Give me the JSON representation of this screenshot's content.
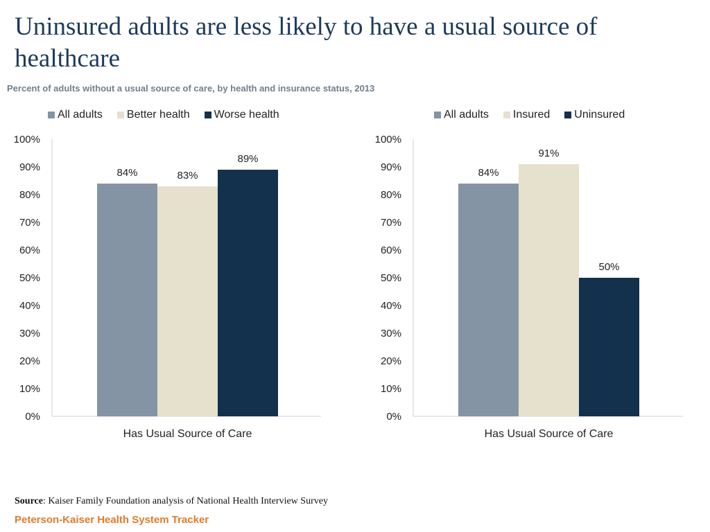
{
  "title": "Uninsured adults are less likely to have a usual source of healthcare",
  "subtitle": "Percent of adults without a usual source of care, by health and insurance status, 2013",
  "source_label": "Source",
  "source_text": ": Kaiser Family Foundation analysis of National Health Interview Survey",
  "footer": "Peterson-Kaiser Health System Tracker",
  "chart_data": [
    {
      "type": "bar",
      "categories": [
        "Has Usual Source of Care"
      ],
      "series": [
        {
          "name": "All adults",
          "values": [
            84
          ],
          "labels": [
            "84%"
          ],
          "color": "#8494a5"
        },
        {
          "name": "Better health",
          "values": [
            83
          ],
          "labels": [
            "83%"
          ],
          "color": "#e6e1cd"
        },
        {
          "name": "Worse health",
          "values": [
            89
          ],
          "labels": [
            "89%"
          ],
          "color": "#13304d"
        }
      ],
      "yticks": [
        "0%",
        "10%",
        "20%",
        "30%",
        "40%",
        "50%",
        "60%",
        "70%",
        "80%",
        "90%",
        "100%"
      ],
      "ylim": [
        0,
        100
      ],
      "legend": "top"
    },
    {
      "type": "bar",
      "categories": [
        "Has Usual Source of Care"
      ],
      "series": [
        {
          "name": "All adults",
          "values": [
            84
          ],
          "labels": [
            "84%"
          ],
          "color": "#8494a5"
        },
        {
          "name": "Insured",
          "values": [
            91
          ],
          "labels": [
            "91%"
          ],
          "color": "#e6e1cd"
        },
        {
          "name": "Uninsured",
          "values": [
            50
          ],
          "labels": [
            "50%"
          ],
          "color": "#13304d"
        }
      ],
      "yticks": [
        "0%",
        "10%",
        "20%",
        "30%",
        "40%",
        "50%",
        "60%",
        "70%",
        "80%",
        "90%",
        "100%"
      ],
      "ylim": [
        0,
        100
      ],
      "legend": "top"
    }
  ]
}
